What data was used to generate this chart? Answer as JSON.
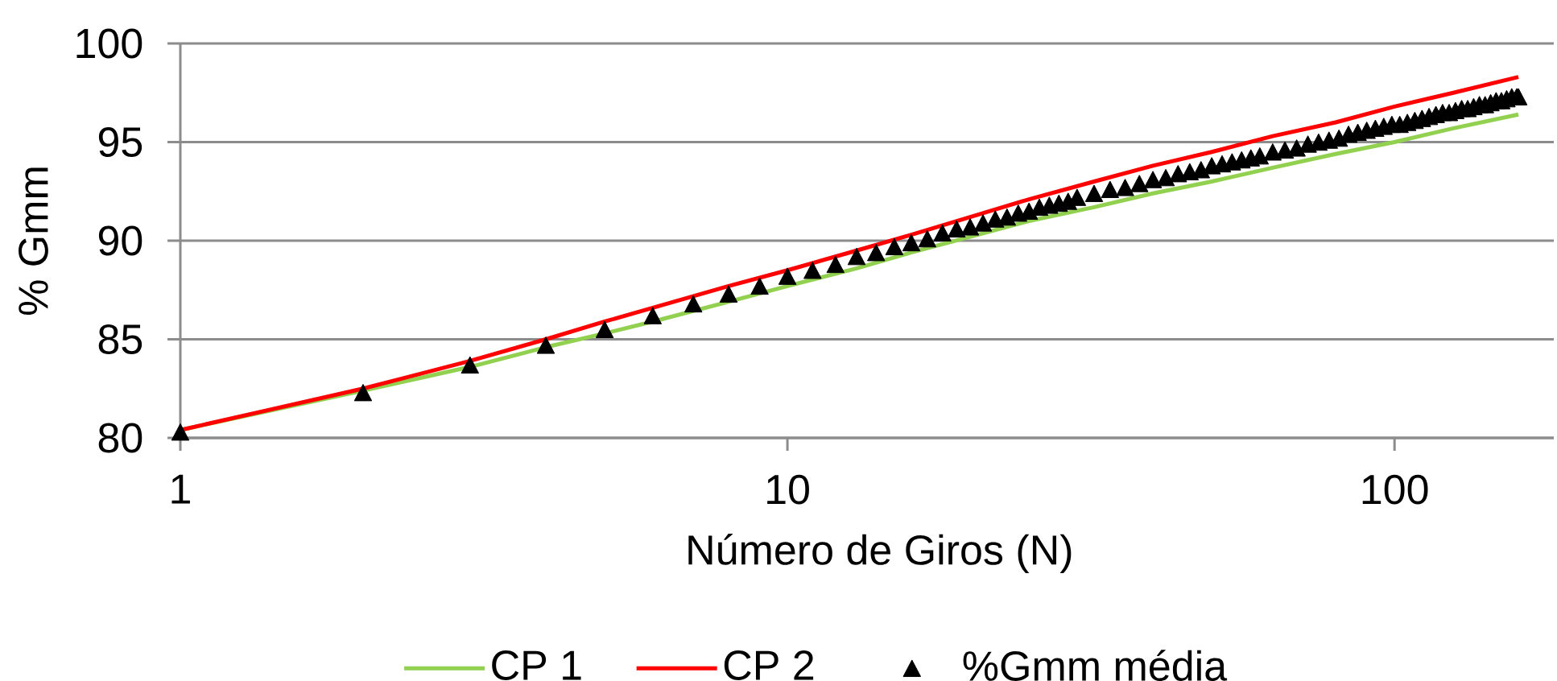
{
  "chart_data": {
    "type": "line",
    "xlabel": "Número de Giros (N)",
    "ylabel": "% Gmm",
    "log": "x",
    "xlim": [
      1,
      183
    ],
    "xticks": [
      1,
      10,
      100
    ],
    "ylim": [
      80,
      100
    ],
    "yticks": [
      80,
      85,
      90,
      95,
      100
    ],
    "grid": "y",
    "legend": "bottom",
    "series": [
      {
        "name": "CP 1",
        "color": "#92d050",
        "marker": "none",
        "x": [
          1,
          2,
          3,
          4,
          5,
          6,
          8,
          10,
          13,
          16,
          20,
          25,
          32,
          40,
          50,
          63,
          80,
          100,
          125,
          160
        ],
        "values": [
          80.4,
          82.4,
          83.6,
          84.6,
          85.3,
          85.9,
          86.9,
          87.7,
          88.6,
          89.4,
          90.2,
          91.0,
          91.7,
          92.4,
          93.0,
          93.7,
          94.4,
          95.0,
          95.7,
          96.4
        ]
      },
      {
        "name": "CP 2",
        "color": "#ff0000",
        "marker": "none",
        "x": [
          1,
          2,
          3,
          4,
          5,
          6,
          8,
          10,
          13,
          16,
          20,
          25,
          32,
          40,
          50,
          63,
          80,
          100,
          125,
          160
        ],
        "values": [
          80.4,
          82.5,
          83.9,
          85.0,
          85.9,
          86.6,
          87.7,
          88.5,
          89.5,
          90.3,
          91.2,
          92.1,
          93.0,
          93.8,
          94.5,
          95.3,
          96.0,
          96.8,
          97.5,
          98.3
        ]
      },
      {
        "name": "%Gmm média",
        "type": "scatter",
        "color": "#000000",
        "marker": "triangle",
        "x": [
          1,
          2,
          3,
          4,
          5,
          6,
          7,
          8,
          9,
          10,
          11,
          12,
          13,
          14,
          15,
          16,
          17,
          18,
          19,
          20,
          21,
          22,
          23,
          24,
          25,
          26,
          27,
          28,
          29,
          30,
          32,
          34,
          36,
          38,
          40,
          42,
          44,
          46,
          48,
          50,
          52,
          54,
          56,
          58,
          60,
          63,
          66,
          69,
          72,
          75,
          78,
          81,
          84,
          87,
          90,
          93,
          96,
          99,
          102,
          105,
          108,
          111,
          114,
          117,
          120,
          123,
          126,
          129,
          132,
          135,
          138,
          141,
          144,
          147,
          150,
          153,
          156,
          159,
          160
        ],
        "values": [
          80.3,
          82.3,
          83.7,
          84.7,
          85.5,
          86.2,
          86.8,
          87.3,
          87.7,
          88.2,
          88.5,
          88.8,
          89.2,
          89.4,
          89.7,
          89.9,
          90.1,
          90.4,
          90.6,
          90.7,
          90.9,
          91.1,
          91.2,
          91.4,
          91.5,
          91.7,
          91.8,
          91.9,
          92.0,
          92.2,
          92.4,
          92.6,
          92.7,
          92.9,
          93.1,
          93.2,
          93.4,
          93.5,
          93.6,
          93.8,
          93.9,
          94.0,
          94.1,
          94.2,
          94.3,
          94.5,
          94.6,
          94.7,
          94.9,
          95.0,
          95.1,
          95.2,
          95.4,
          95.5,
          95.6,
          95.7,
          95.8,
          95.9,
          95.9,
          96.0,
          96.1,
          96.2,
          96.3,
          96.4,
          96.5,
          96.5,
          96.6,
          96.7,
          96.7,
          96.8,
          96.9,
          96.9,
          97.0,
          97.1,
          97.1,
          97.2,
          97.3,
          97.3,
          97.3
        ]
      }
    ]
  }
}
